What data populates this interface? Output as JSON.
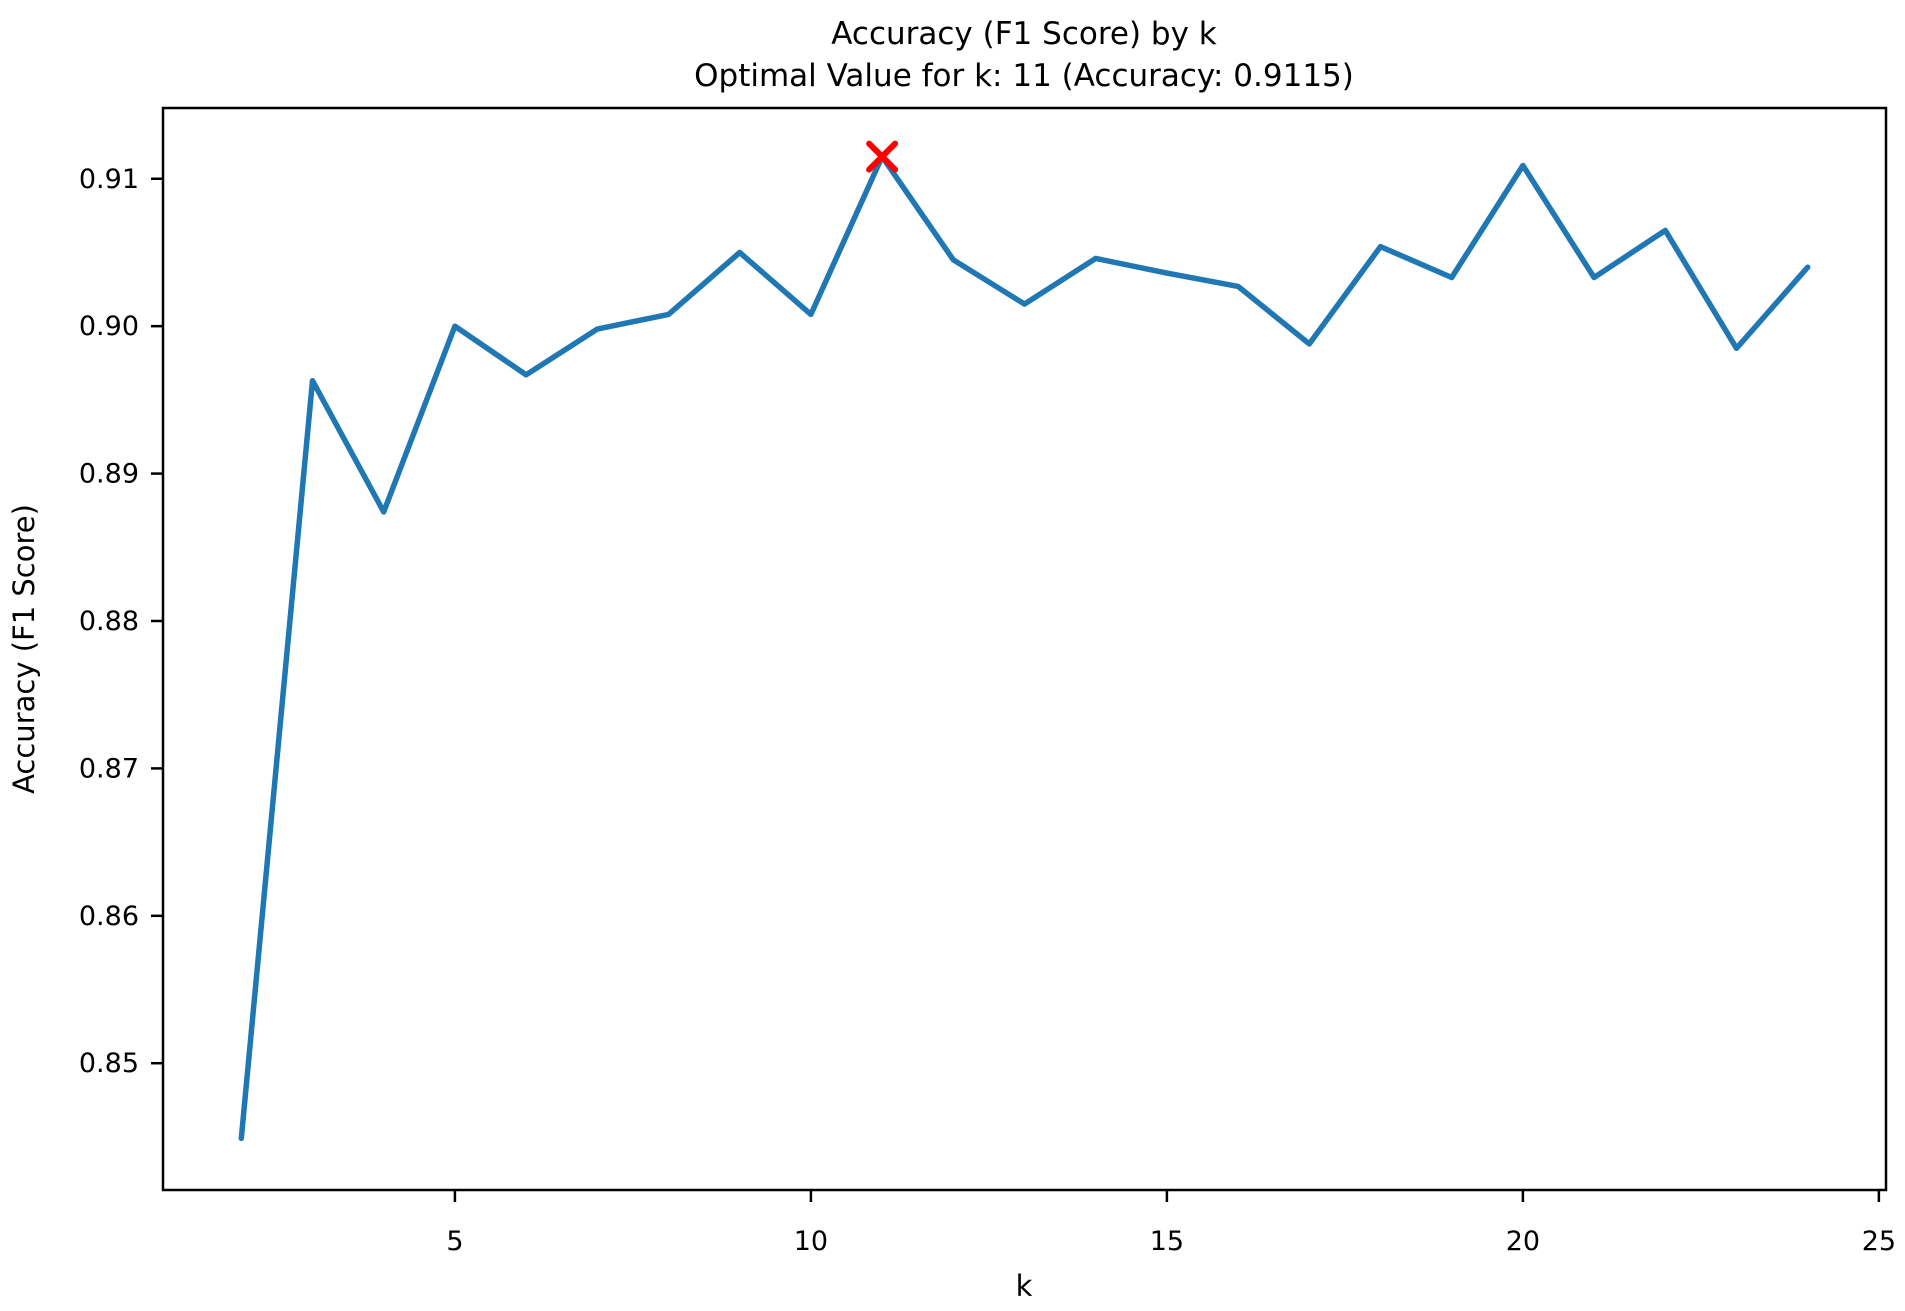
{
  "chart_data": {
    "type": "line",
    "title": "Accuracy (F1 Score) by k",
    "subtitle": "Optimal Value for k: 11 (Accuracy: 0.9115)",
    "xlabel": "k",
    "ylabel": "Accuracy (F1 Score)",
    "x": [
      2,
      3,
      4,
      5,
      6,
      7,
      8,
      9,
      10,
      11,
      12,
      13,
      14,
      15,
      16,
      17,
      18,
      19,
      20,
      21,
      22,
      23,
      24
    ],
    "values": [
      0.8449,
      0.8963,
      0.8874,
      0.9,
      0.8967,
      0.8998,
      0.9008,
      0.905,
      0.9008,
      0.9115,
      0.9045,
      0.9015,
      0.9046,
      0.9036,
      0.9027,
      0.8988,
      0.9054,
      0.9033,
      0.9109,
      0.9033,
      0.9065,
      0.8985,
      0.904
    ],
    "optimal_point": {
      "k": 11,
      "accuracy": 0.9115
    },
    "xticks": [
      5,
      10,
      15,
      20,
      25
    ],
    "yticks": [
      0.85,
      0.86,
      0.87,
      0.88,
      0.89,
      0.9,
      0.91
    ],
    "xlim": [
      0.9,
      25.1
    ],
    "ylim": [
      0.8414,
      0.9148
    ],
    "grid": false,
    "legend": null,
    "line_color": "#1f77b4",
    "marker_color": "#ff0000",
    "axis_color": "#000000",
    "background_color": "#ffffff"
  }
}
